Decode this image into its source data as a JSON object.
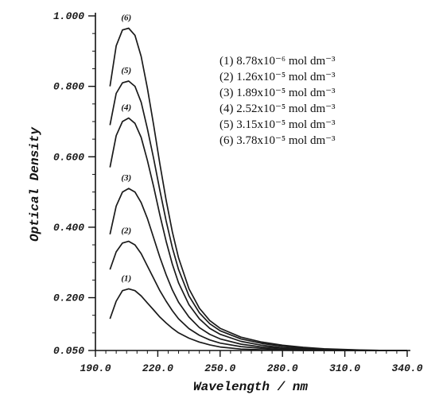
{
  "chart_data": {
    "type": "line",
    "xlabel": "Wavelength / nm",
    "ylabel": "Optical Density",
    "xlim": [
      190,
      340
    ],
    "ylim": [
      0.05,
      1.0
    ],
    "x_ticks": [
      "190.0",
      "220.0",
      "250.0",
      "280.0",
      "310.0",
      "340.0"
    ],
    "y_ticks": [
      "0.050",
      "0.200",
      "0.400",
      "0.600",
      "0.800",
      "1.000"
    ],
    "legend_position": "top-right",
    "legend": [
      "(1) 8.78x10⁻⁶ mol dm⁻³",
      "(2) 1.26x10⁻⁵ mol dm⁻³",
      "(3) 1.89x10⁻⁵ mol dm⁻³",
      "(4) 2.52x10⁻⁵ mol dm⁻³",
      "(5) 3.15x10⁻⁵ mol dm⁻³",
      "(6) 3.78x10⁻⁵ mol dm⁻³"
    ],
    "x": [
      197,
      200,
      203,
      206,
      209,
      212,
      215,
      218,
      221,
      224,
      227,
      230,
      235,
      240,
      245,
      250,
      260,
      270,
      280,
      290,
      300,
      310,
      320,
      330,
      340
    ],
    "series": [
      {
        "label": "(1)",
        "values": [
          0.14,
          0.19,
          0.22,
          0.225,
          0.22,
          0.205,
          0.185,
          0.165,
          0.145,
          0.128,
          0.113,
          0.1,
          0.085,
          0.074,
          0.066,
          0.06,
          0.054,
          0.052,
          0.051,
          0.05,
          0.05,
          0.05,
          0.05,
          0.05,
          0.05
        ]
      },
      {
        "label": "(2)",
        "values": [
          0.28,
          0.33,
          0.355,
          0.36,
          0.35,
          0.325,
          0.29,
          0.255,
          0.22,
          0.19,
          0.163,
          0.14,
          0.112,
          0.093,
          0.08,
          0.071,
          0.061,
          0.056,
          0.053,
          0.052,
          0.051,
          0.05,
          0.05,
          0.05,
          0.05
        ]
      },
      {
        "label": "(3)",
        "values": [
          0.38,
          0.46,
          0.5,
          0.51,
          0.5,
          0.47,
          0.425,
          0.37,
          0.315,
          0.265,
          0.222,
          0.187,
          0.145,
          0.115,
          0.096,
          0.083,
          0.068,
          0.06,
          0.056,
          0.053,
          0.052,
          0.051,
          0.05,
          0.05,
          0.05
        ]
      },
      {
        "label": "(4)",
        "values": [
          0.57,
          0.66,
          0.7,
          0.71,
          0.695,
          0.655,
          0.59,
          0.515,
          0.435,
          0.36,
          0.295,
          0.242,
          0.18,
          0.14,
          0.113,
          0.096,
          0.076,
          0.065,
          0.058,
          0.055,
          0.053,
          0.051,
          0.05,
          0.05,
          0.05
        ]
      },
      {
        "label": "(5)",
        "values": [
          0.69,
          0.78,
          0.81,
          0.815,
          0.8,
          0.755,
          0.68,
          0.595,
          0.505,
          0.418,
          0.342,
          0.28,
          0.205,
          0.157,
          0.126,
          0.106,
          0.083,
          0.07,
          0.062,
          0.057,
          0.054,
          0.052,
          0.051,
          0.05,
          0.05
        ]
      },
      {
        "label": "(6)",
        "values": [
          0.8,
          0.915,
          0.96,
          0.965,
          0.945,
          0.885,
          0.795,
          0.69,
          0.58,
          0.477,
          0.387,
          0.313,
          0.225,
          0.17,
          0.135,
          0.113,
          0.088,
          0.074,
          0.065,
          0.059,
          0.055,
          0.053,
          0.051,
          0.05,
          0.05
        ]
      }
    ]
  }
}
